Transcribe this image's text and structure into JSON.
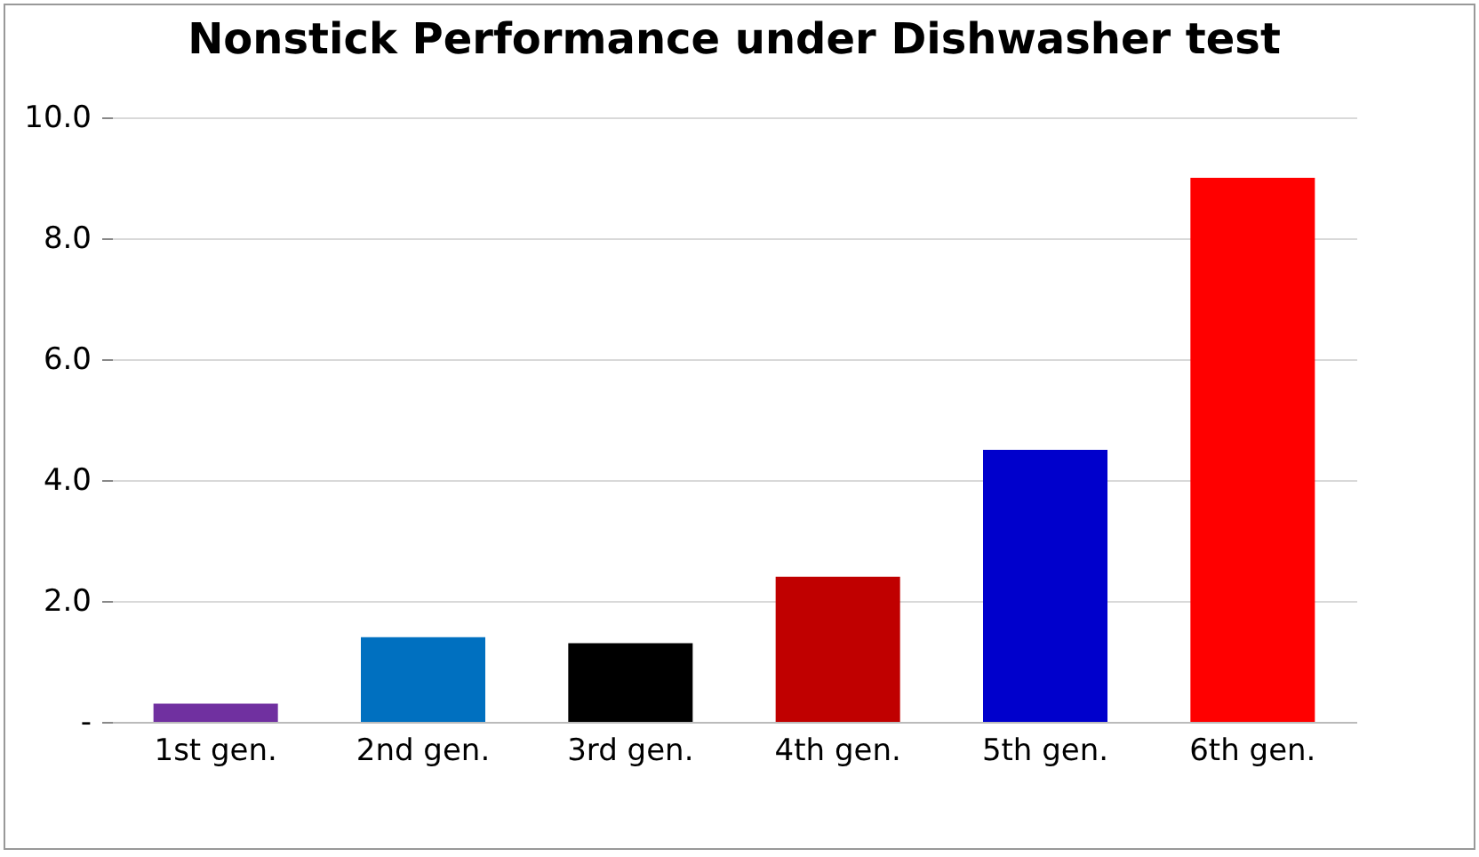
{
  "chart_data": {
    "type": "bar",
    "title": "Nonstick Performance under Dishwasher test",
    "categories": [
      "1st gen.",
      "2nd gen.",
      "3rd gen.",
      "4th gen.",
      "5th gen.",
      "6th gen."
    ],
    "values": [
      0.3,
      1.4,
      1.3,
      2.4,
      4.5,
      9.0
    ],
    "colors": [
      "#7030a0",
      "#0070c0",
      "#000000",
      "#c00000",
      "#0000cc",
      "#ff0000"
    ],
    "ylim": [
      0,
      10
    ],
    "yticks": [
      {
        "value": 0,
        "label": "-"
      },
      {
        "value": 2,
        "label": "2.0"
      },
      {
        "value": 4,
        "label": "4.0"
      },
      {
        "value": 6,
        "label": "6.0"
      },
      {
        "value": 8,
        "label": "8.0"
      },
      {
        "value": 10,
        "label": "10.0"
      }
    ],
    "grid": "y"
  }
}
